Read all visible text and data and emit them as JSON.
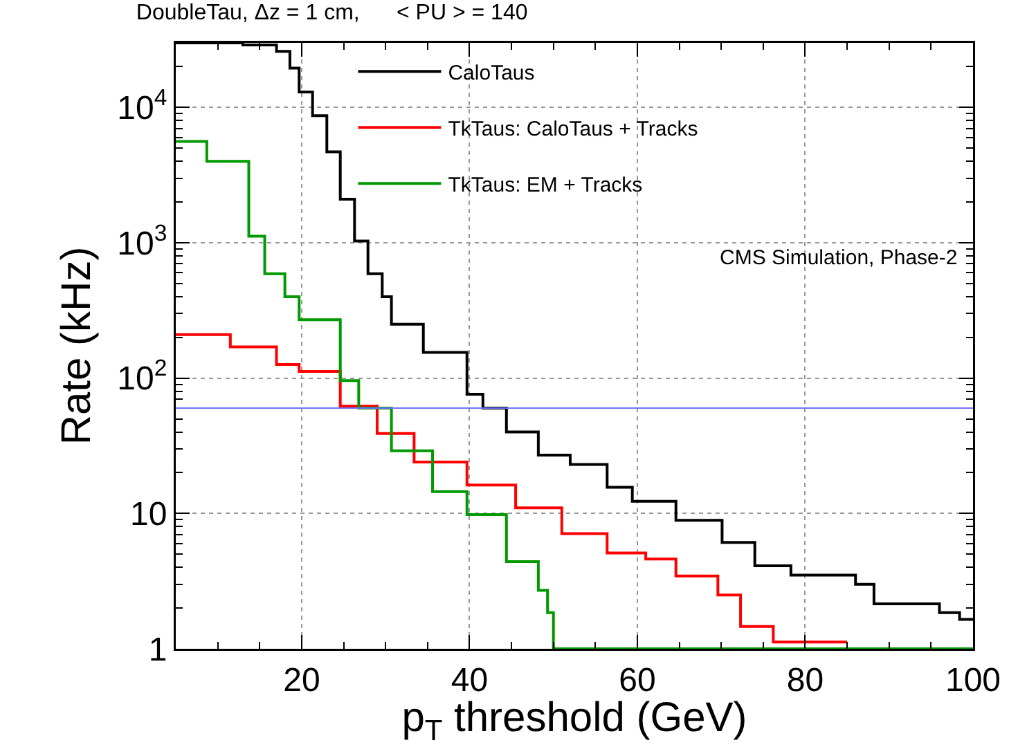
{
  "chart_data": {
    "type": "step",
    "title": "DoubleTau, Δz = 1 cm,      < PU > = 140",
    "xlabel": "p$_{T}$ threshold (GeV)",
    "ylabel": "Rate (kHz)",
    "annotations": [
      "CMS Simulation, Phase-2"
    ],
    "log": "y",
    "grid": true,
    "legend": "top",
    "line_style": "solid",
    "marker": "none",
    "xlim": [
      5,
      100
    ],
    "xticks": [
      20,
      40,
      60,
      80,
      100
    ],
    "ylim": [
      1,
      30000
    ],
    "yticks": [
      1,
      10,
      {
        "value": 100,
        "label": "10$^{2}$"
      },
      {
        "value": 1000,
        "label": "10$^{3}$"
      },
      {
        "value": 10000,
        "label": "10$^{4}$"
      }
    ],
    "ref_lines": [
      {
        "axis": "y",
        "value": 60,
        "label": null,
        "color": "#7070ff"
      }
    ],
    "series": [
      {
        "name": "CaloTaus",
        "color": "#000000",
        "x": [
          5,
          13,
          17,
          18.6,
          19.7,
          21.3,
          23,
          24.6,
          26.3,
          27.9,
          29.6,
          30.7,
          34.5,
          39.7,
          41.6,
          44.4,
          48.2,
          52,
          56.4,
          59.4,
          64.6,
          70.1,
          74,
          78.3,
          86,
          88.2,
          96,
          98.4,
          100
        ],
        "values": [
          30000,
          29000,
          26000,
          19500,
          13000,
          8700,
          4700,
          2100,
          1030,
          590,
          400,
          250,
          155,
          76,
          60,
          40,
          27,
          23,
          15.6,
          12.3,
          8.9,
          6.1,
          4.1,
          3.5,
          3.0,
          2.15,
          1.85,
          1.65,
          1.65
        ]
      },
      {
        "name": "TkTaus: CaloTaus + Tracks",
        "color": "#ff0000",
        "x": [
          5,
          11.5,
          17,
          19.7,
          24.6,
          29,
          33.4,
          39.7,
          45.5,
          51,
          56.4,
          61,
          64.6,
          69.6,
          72.3,
          76.2,
          85
        ],
        "values": [
          210,
          170,
          126,
          112,
          62,
          39,
          24,
          16.2,
          11,
          7.1,
          5.1,
          4.6,
          3.45,
          2.5,
          1.46,
          1.12,
          1.12
        ]
      },
      {
        "name": "TkTaus: EM + Tracks",
        "color": "#009900",
        "x": [
          5,
          8.7,
          13.7,
          15.6,
          18,
          19.7,
          24.6,
          26.8,
          30.7,
          35.6,
          39.7,
          44.4,
          48.2,
          49.3,
          50,
          100
        ],
        "values": [
          5600,
          4000,
          1120,
          590,
          400,
          270,
          96,
          60,
          29,
          14.5,
          9.8,
          4.4,
          2.7,
          1.85,
          1,
          1
        ]
      }
    ]
  }
}
